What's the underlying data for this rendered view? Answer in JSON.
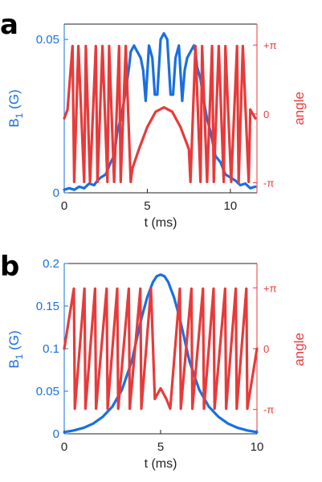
{
  "chart_data": [
    {
      "panel": "a",
      "type": "line",
      "title": "",
      "xlabel": "t (ms)",
      "ylabel_left": "B1 (G)",
      "ylabel_left_main": "B",
      "ylabel_left_sub": "1",
      "ylabel_left_unit": " (G)",
      "ylabel_right": "angle",
      "xlim": [
        0,
        11.6
      ],
      "ylim_left": [
        0,
        0.055
      ],
      "ylim_right": [
        -3.6,
        4.1
      ],
      "xticks": [
        0,
        5,
        10
      ],
      "xtick_labels": [
        "0",
        "5",
        "10"
      ],
      "yticks_left": [
        0,
        0.05
      ],
      "ytick_labels_left": [
        "0",
        "0.05"
      ],
      "yticks_right": [
        3.1416,
        0,
        -3.1416
      ],
      "ytick_labels_right": [
        "+π",
        "0",
        "-π"
      ],
      "colors": {
        "magnitude": "#1a6fe0",
        "phase": "#e83a3a"
      },
      "series": [
        {
          "axis": "left",
          "x": [
            0,
            0.3,
            0.6,
            0.9,
            1.2,
            1.5,
            1.8,
            2.0,
            2.2,
            2.5,
            2.8,
            3.0,
            3.2,
            3.4,
            3.6,
            3.8,
            3.9,
            4.0,
            4.2,
            4.4,
            4.6,
            4.75,
            4.9,
            5.1,
            5.3,
            5.45,
            5.6,
            5.8,
            6.0,
            6.2,
            6.4,
            6.55,
            6.7,
            6.9,
            7.1,
            7.25,
            7.4,
            7.6,
            7.8,
            7.9,
            8.0,
            8.2,
            8.4,
            8.6,
            8.8,
            9.1,
            9.4,
            9.7,
            10.0,
            10.3,
            10.6,
            10.9,
            11.2,
            11.5
          ],
          "values": [
            0.001,
            0.0015,
            0.001,
            0.002,
            0.0015,
            0.003,
            0.0025,
            0.004,
            0.005,
            0.006,
            0.01,
            0.012,
            0.02,
            0.024,
            0.03,
            0.037,
            0.041,
            0.046,
            0.048,
            0.046,
            0.044,
            0.04,
            0.03,
            0.048,
            0.044,
            0.032,
            0.032,
            0.05,
            0.052,
            0.05,
            0.032,
            0.032,
            0.044,
            0.048,
            0.03,
            0.04,
            0.044,
            0.046,
            0.048,
            0.046,
            0.041,
            0.037,
            0.03,
            0.024,
            0.02,
            0.012,
            0.01,
            0.006,
            0.005,
            0.004,
            0.0025,
            0.003,
            0.0015,
            0.002
          ]
        },
        {
          "axis": "right",
          "x": [
            0,
            0.2,
            0.5,
            0.6,
            0.85,
            1.2,
            1.3,
            1.55,
            1.9,
            2.0,
            2.3,
            2.6,
            2.7,
            3.0,
            3.3,
            3.4,
            3.7,
            4.0,
            4.1,
            4.5,
            5.0,
            5.5,
            6.0,
            6.5,
            7.0,
            7.5,
            7.6,
            7.9,
            8.2,
            8.3,
            8.6,
            8.9,
            9.0,
            9.3,
            9.6,
            9.7,
            10.05,
            10.4,
            10.5,
            10.75,
            11.1,
            11.2,
            11.5
          ],
          "values": [
            -0.2,
            0.2,
            3.1,
            -3.1,
            3.1,
            -3.1,
            3.1,
            -3.1,
            3.1,
            -3.1,
            3.1,
            -3.1,
            3.1,
            -3.1,
            3.1,
            -3.1,
            3.1,
            -3.1,
            -2.5,
            -1.6,
            -0.6,
            0.1,
            0.3,
            0.1,
            -0.6,
            -1.6,
            -3.1,
            3.1,
            -3.1,
            3.1,
            -3.1,
            3.1,
            -3.1,
            3.1,
            -3.1,
            3.1,
            -3.1,
            3.1,
            -3.1,
            3.1,
            -3.1,
            0.2,
            -0.2
          ]
        }
      ]
    },
    {
      "panel": "b",
      "type": "line",
      "title": "",
      "xlabel": "t (ms)",
      "ylabel_left": "B1 (G)",
      "ylabel_left_main": "B",
      "ylabel_left_sub": "1",
      "ylabel_left_unit": " (G)",
      "ylabel_right": "angle",
      "xlim": [
        0,
        10
      ],
      "ylim_left": [
        0,
        0.2
      ],
      "ylim_right": [
        -4.4,
        4.4
      ],
      "xticks": [
        0,
        5,
        10
      ],
      "xtick_labels": [
        "0",
        "5",
        "10"
      ],
      "yticks_left": [
        0,
        0.05,
        0.1,
        0.15,
        0.2
      ],
      "ytick_labels_left": [
        "0",
        "0.05",
        "0.1",
        "0.15",
        "0.2"
      ],
      "yticks_right": [
        3.1416,
        0,
        -3.1416
      ],
      "ytick_labels_right": [
        "+π",
        "0",
        "-π"
      ],
      "colors": {
        "magnitude": "#1a6fe0",
        "phase": "#e83a3a"
      },
      "series": [
        {
          "axis": "left",
          "x": [
            0,
            0.5,
            1.0,
            1.5,
            2.0,
            2.5,
            3.0,
            3.5,
            4.0,
            4.3,
            4.6,
            4.8,
            5.0,
            5.2,
            5.4,
            5.7,
            6.0,
            6.5,
            7.0,
            7.5,
            8.0,
            8.5,
            9.0,
            9.5,
            10.0
          ],
          "values": [
            0.002,
            0.004,
            0.007,
            0.012,
            0.02,
            0.032,
            0.052,
            0.085,
            0.135,
            0.16,
            0.178,
            0.185,
            0.187,
            0.185,
            0.178,
            0.16,
            0.135,
            0.085,
            0.052,
            0.032,
            0.02,
            0.012,
            0.007,
            0.004,
            0.002
          ]
        },
        {
          "axis": "right",
          "x": [
            0,
            0.5,
            0.55,
            1.05,
            1.1,
            1.6,
            1.65,
            2.2,
            2.25,
            2.75,
            2.8,
            3.35,
            3.4,
            3.95,
            4.0,
            4.5,
            4.7,
            5.0,
            5.3,
            5.5,
            6.0,
            6.05,
            6.6,
            6.65,
            7.2,
            7.25,
            7.75,
            7.8,
            8.35,
            8.4,
            8.9,
            8.95,
            9.45,
            9.5,
            10.0
          ],
          "values": [
            0,
            3.1,
            -3.1,
            3.1,
            -3.1,
            3.1,
            -3.1,
            3.1,
            -3.1,
            3.1,
            -3.1,
            3.1,
            -3.1,
            3.1,
            -3.1,
            3.1,
            -2.6,
            -2.05,
            -2.6,
            -3.1,
            3.1,
            -3.1,
            3.1,
            -3.1,
            3.1,
            -3.1,
            3.1,
            -3.1,
            3.1,
            -3.1,
            3.1,
            -3.1,
            3.1,
            -3.1,
            0
          ]
        }
      ]
    }
  ]
}
